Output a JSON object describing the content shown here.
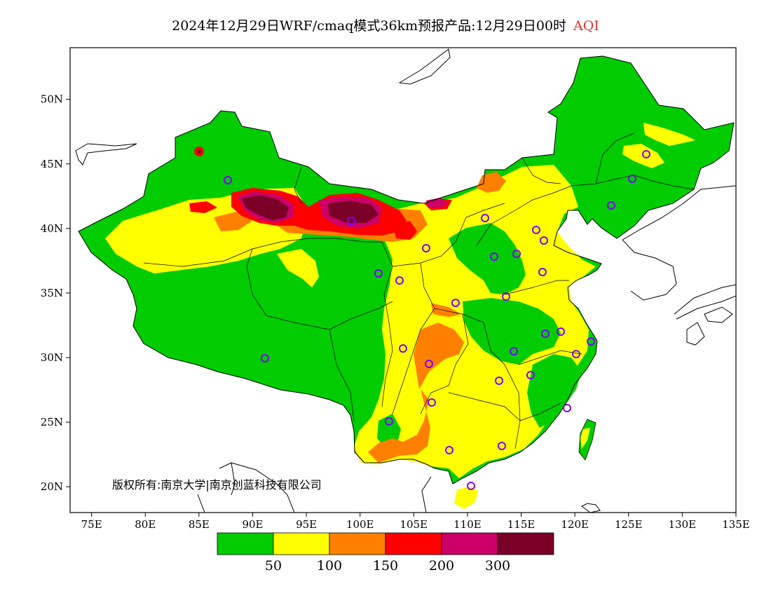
{
  "title": {
    "main": "2024年12月29日WRF/cmaq模式36km预报产品:12月29日00时",
    "variable": "AQI",
    "variable_color": "#e03030"
  },
  "map": {
    "lon_range": [
      73,
      135
    ],
    "lat_range": [
      18,
      54
    ],
    "lon_ticks": [
      "75E",
      "80E",
      "85E",
      "90E",
      "95E",
      "100E",
      "105E",
      "110E",
      "115E",
      "120E",
      "125E",
      "130E",
      "135E"
    ],
    "lat_ticks": [
      "50N",
      "45N",
      "40N",
      "35N",
      "30N",
      "25N",
      "20N"
    ],
    "copyright": "版权所有:南京大学|南京创蓝科技有限公司"
  },
  "legend": {
    "colors": [
      "#00cc00",
      "#ffff00",
      "#ff8000",
      "#ff0000",
      "#cc0066",
      "#7a0027"
    ],
    "labels": [
      "50",
      "100",
      "150",
      "200",
      "300"
    ]
  },
  "colors": {
    "good": "#00cc00",
    "moderate": "#ffff00",
    "sensitive": "#ff8000",
    "unhealthy": "#ff0000",
    "very_unhealthy": "#cc0066",
    "hazardous": "#7a0027",
    "station_marker": "#8000ff"
  }
}
